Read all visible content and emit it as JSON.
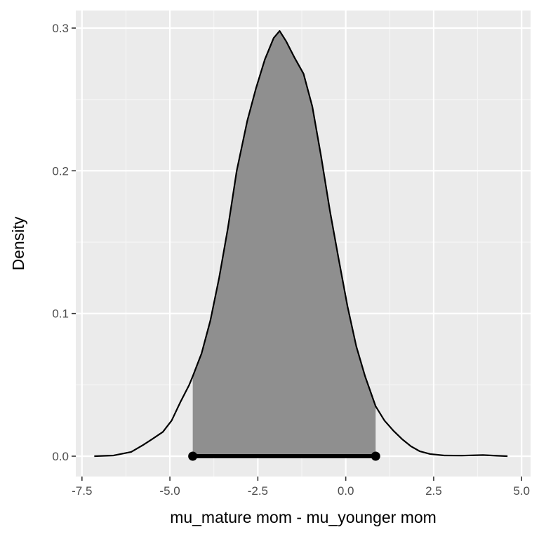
{
  "colors": {
    "panel": "#ebebeb",
    "grid_major": "#ffffff",
    "grid_minor": "#f5f5f5",
    "density_line": "#000000",
    "interval_fill": "#8f8f8f",
    "interval_segment": "#000000",
    "tick": "#333333"
  },
  "chart_data": {
    "type": "area",
    "title": "",
    "xlabel": "mu_mature mom - mu_younger mom",
    "ylabel": "Density",
    "xlim": [
      -7.5,
      5.0
    ],
    "ylim": [
      0.0,
      0.3
    ],
    "x_ticks": [
      -7.5,
      -5.0,
      -2.5,
      0.0,
      2.5,
      5.0
    ],
    "x_tick_labels": [
      "-7.5",
      "-5.0",
      "-2.5",
      "0.0",
      "2.5",
      "5.0"
    ],
    "y_ticks": [
      0.0,
      0.1,
      0.2,
      0.3
    ],
    "y_tick_labels": [
      "0.0",
      "0.1",
      "0.2",
      "0.3"
    ],
    "grid": true,
    "legend": "none",
    "density": {
      "x": [
        -7.15,
        -6.6,
        -6.1,
        -5.75,
        -5.5,
        -5.2,
        -4.95,
        -4.7,
        -4.45,
        -4.35,
        -4.1,
        -3.85,
        -3.6,
        -3.35,
        -3.1,
        -2.8,
        -2.55,
        -2.3,
        -2.05,
        -1.88,
        -1.7,
        -1.45,
        -1.2,
        -0.95,
        -0.7,
        -0.45,
        -0.2,
        0.05,
        0.3,
        0.55,
        0.85,
        1.1,
        1.35,
        1.6,
        1.85,
        2.1,
        2.4,
        2.8,
        3.3,
        3.9,
        4.3,
        4.6
      ],
      "y": [
        0.0,
        0.0005,
        0.003,
        0.008,
        0.012,
        0.017,
        0.025,
        0.038,
        0.05,
        0.056,
        0.072,
        0.095,
        0.125,
        0.16,
        0.2,
        0.235,
        0.258,
        0.278,
        0.293,
        0.298,
        0.291,
        0.279,
        0.268,
        0.245,
        0.21,
        0.172,
        0.138,
        0.105,
        0.077,
        0.056,
        0.035,
        0.025,
        0.018,
        0.012,
        0.007,
        0.0035,
        0.0015,
        0.0005,
        0.0004,
        0.0008,
        0.0003,
        0.0
      ]
    },
    "interval": {
      "low": -4.35,
      "high": 0.85
    }
  }
}
